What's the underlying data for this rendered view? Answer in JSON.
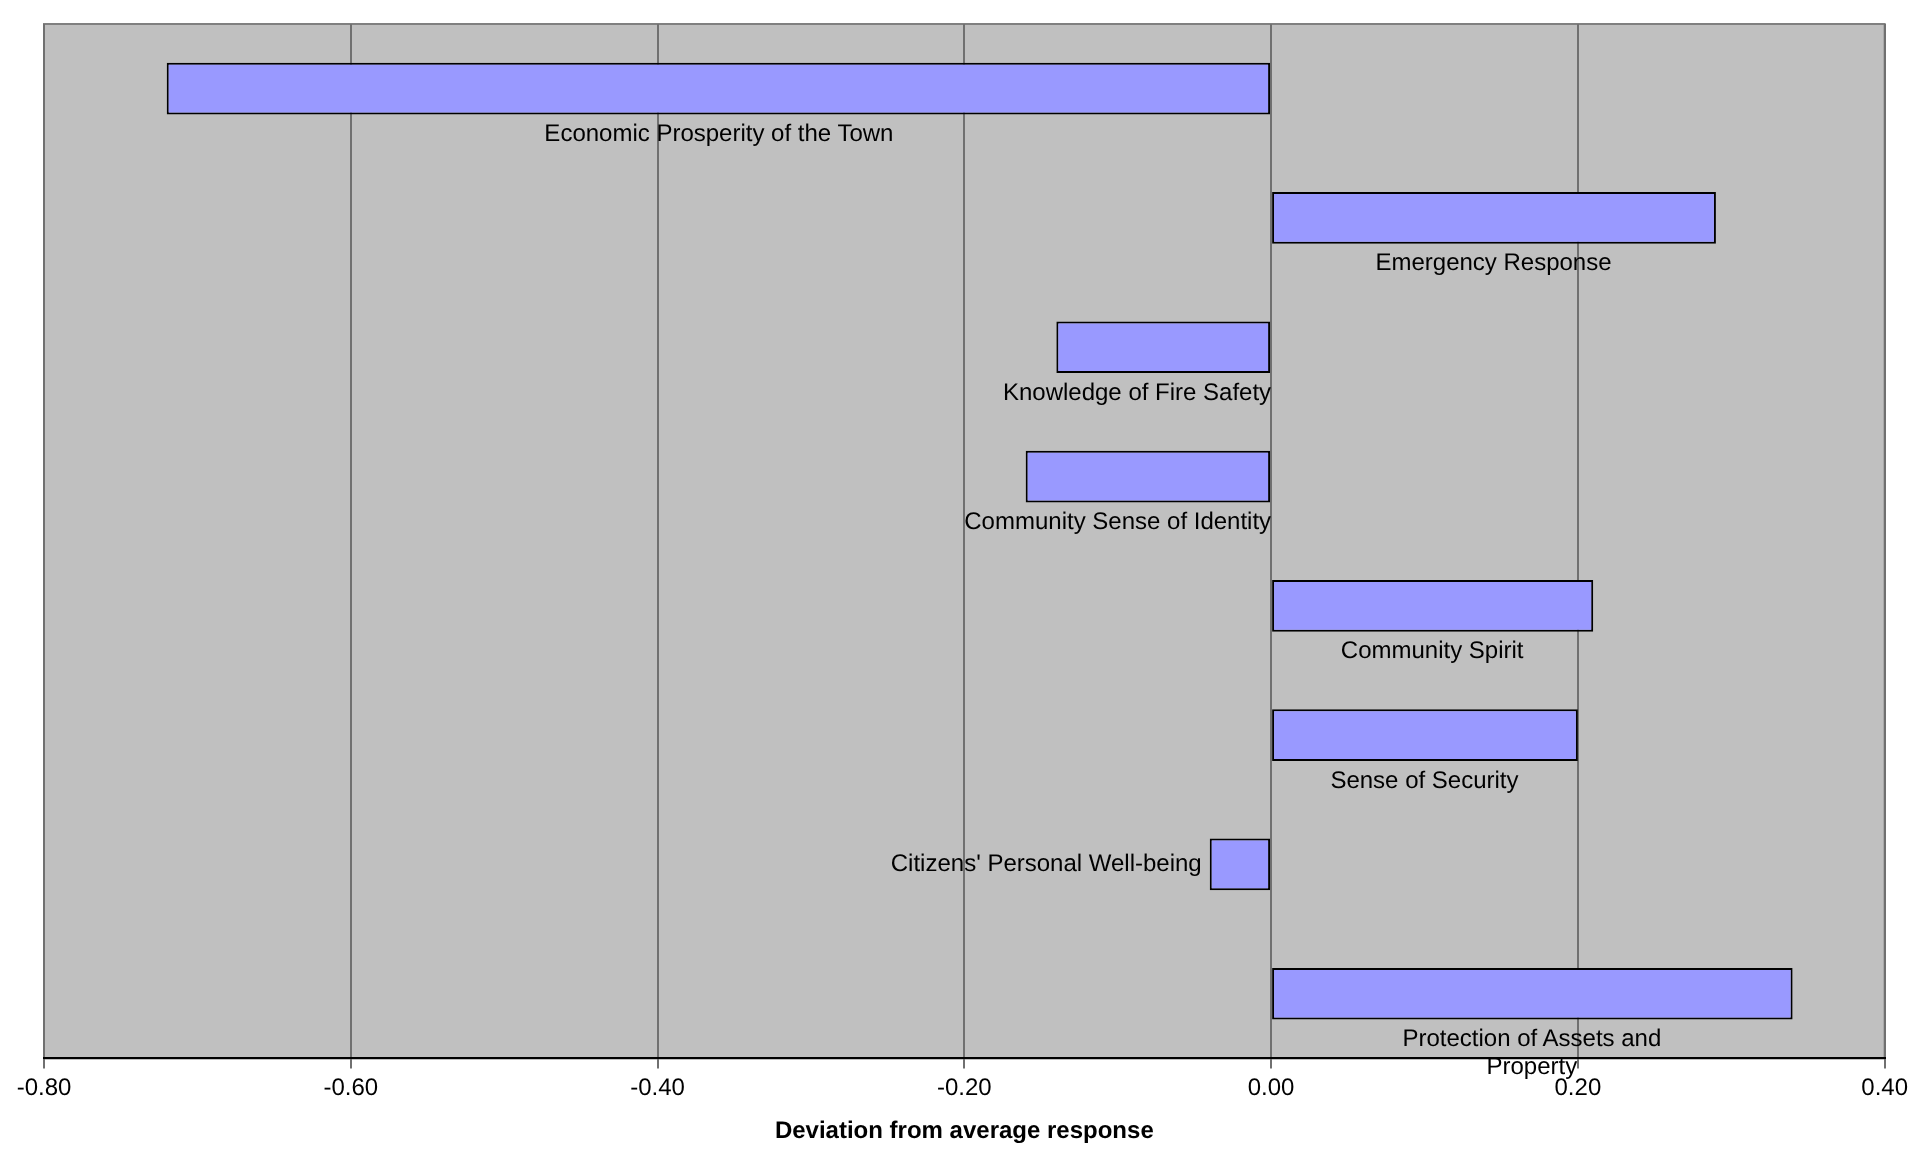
{
  "chart_data": {
    "type": "bar",
    "orientation": "horizontal",
    "xlabel": "Deviation from average response",
    "categories": [
      "Economic Prosperity of the Town",
      "Emergency Response",
      "Knowledge of Fire Safety",
      "Community Sense of Identity",
      "Community Spirit",
      "Sense of Security",
      "Citizens' Personal Well-being",
      "Protection of Assets and Property"
    ],
    "values": [
      -0.72,
      0.29,
      -0.14,
      -0.16,
      0.21,
      0.2,
      -0.04,
      0.34
    ],
    "color": "#9999ff",
    "xlim": [
      -0.8,
      0.4
    ],
    "xticks": [
      {
        "value": -0.8,
        "label": "-0.80"
      },
      {
        "value": -0.6,
        "label": "-0.60"
      },
      {
        "value": -0.4,
        "label": "-0.40"
      },
      {
        "value": -0.2,
        "label": "-0.20"
      },
      {
        "value": 0,
        "label": "0.00"
      },
      {
        "value": 0.2,
        "label": "0.20"
      },
      {
        "value": 0.4,
        "label": "0.40"
      }
    ],
    "grid": "x",
    "legend": false
  }
}
